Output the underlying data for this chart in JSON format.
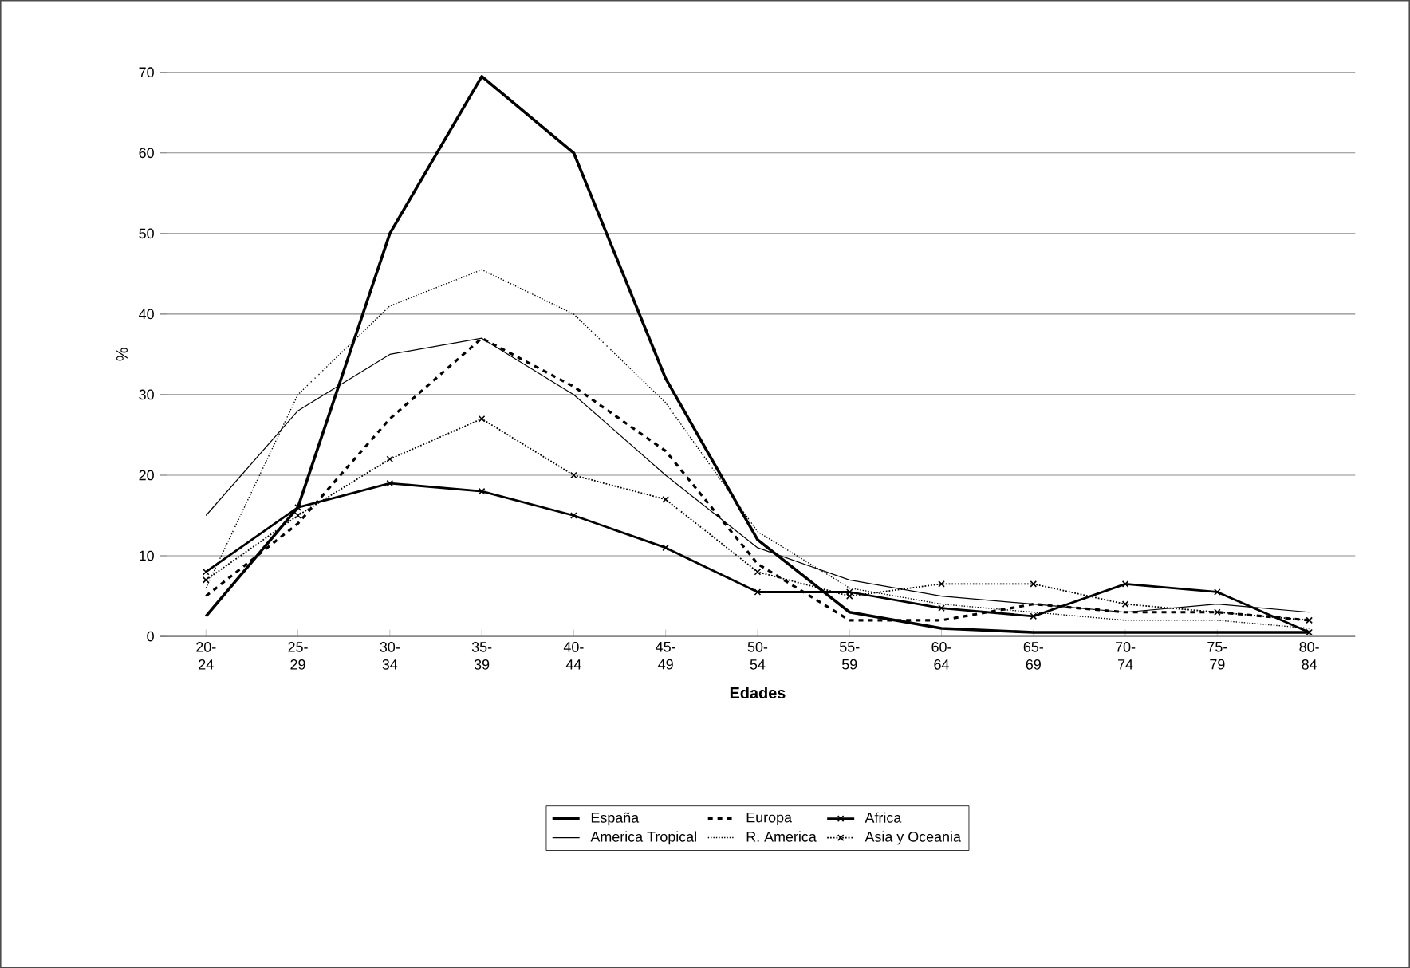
{
  "chart_data": {
    "type": "line",
    "xlabel": "Edades",
    "ylabel": "%",
    "categories": [
      "20-24",
      "25-29",
      "30-34",
      "35-39",
      "40-44",
      "45-49",
      "50-54",
      "55-59",
      "60-64",
      "65-69",
      "70-74",
      "75-79",
      "80-84"
    ],
    "series": [
      {
        "name": "España",
        "color": "#000000",
        "line_style": "solid",
        "marker": "none",
        "values": [
          2.5,
          16,
          50,
          69.5,
          60,
          32,
          12,
          3,
          1,
          0.5,
          0.5,
          0.5,
          0.5
        ]
      },
      {
        "name": "Europa",
        "color": "#000000",
        "line_style": "dashed",
        "marker": "none",
        "values": [
          5,
          14,
          27,
          37,
          31,
          23,
          9,
          2,
          2,
          4,
          3,
          3,
          2
        ]
      },
      {
        "name": "Africa",
        "color": "#000000",
        "line_style": "solid",
        "marker": "cross",
        "values": [
          8,
          16,
          19,
          18,
          15,
          11,
          5.5,
          5.5,
          3.5,
          2.5,
          6.5,
          5.5,
          0.5
        ]
      },
      {
        "name": "America Tropical",
        "color": "#000000",
        "line_style": "solid",
        "marker": "none",
        "values": [
          15,
          28,
          35,
          37,
          30,
          20,
          11,
          7,
          5,
          4,
          3,
          4,
          3
        ]
      },
      {
        "name": "R. America",
        "color": "#000000",
        "line_style": "dotted",
        "marker": "none",
        "values": [
          6,
          30,
          41,
          45.5,
          40,
          29,
          13,
          6,
          4,
          3,
          2,
          2,
          1
        ]
      },
      {
        "name": "Asia y Oceania",
        "color": "#000000",
        "line_style": "dotted",
        "marker": "cross",
        "values": [
          7,
          15,
          22,
          27,
          20,
          17,
          8,
          5,
          6.5,
          6.5,
          4,
          3,
          2
        ]
      }
    ],
    "ylim": [
      0,
      70
    ],
    "yticks": [
      0,
      10,
      20,
      30,
      40,
      50,
      60,
      70
    ],
    "grid": "y",
    "legend": "bottom"
  }
}
